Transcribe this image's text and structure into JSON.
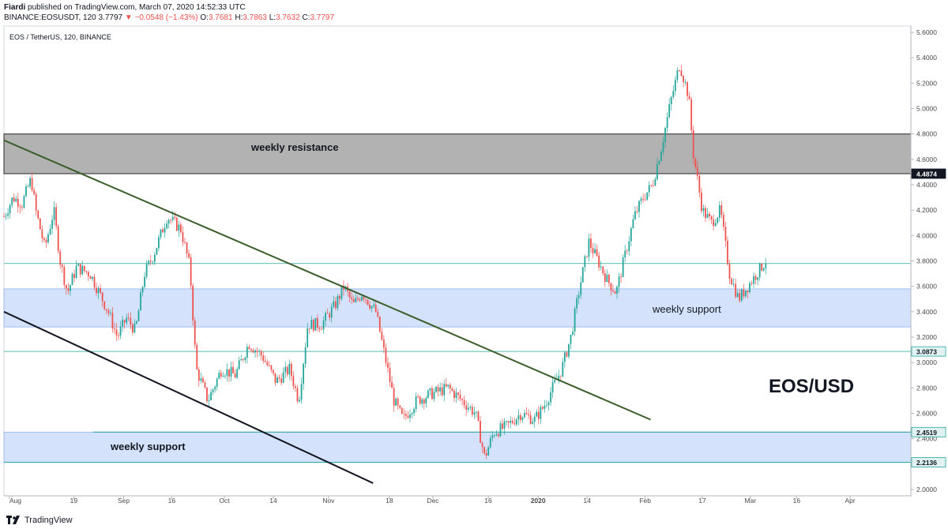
{
  "header": {
    "author": "Fiardi",
    "published_text": "published on TradingView.com, March 07, 2020 14:52:33 UTC",
    "symbol": "BINANCE:EOSUSDT, 120",
    "last": "3.7797",
    "change": "−0.0548 (−1.43%)",
    "o_label": "O:",
    "o_value": "3.7681",
    "h_label": "H:",
    "h_value": "3.7863",
    "l_label": "L:",
    "l_value": "3.7632",
    "c_label": "C:",
    "c_value": "3.7797"
  },
  "footer": {
    "brand": "TradingView"
  },
  "colors": {
    "up": "#26a69a",
    "down": "#ef5350",
    "resistance_zone": "#b2b2b2",
    "support_zone": "#d4e3fb",
    "trend_green": "#3b5e2b",
    "trend_black": "#131722",
    "hline": "#26a69a"
  },
  "chart_data": {
    "type": "candlestick",
    "legend": "EOS / TetherUS, 120, BINANCE",
    "y_ticks": [
      "5.6000",
      "5.4000",
      "5.2000",
      "5.0000",
      "4.8000",
      "4.6000",
      "4.4000",
      "4.2000",
      "4.0000",
      "3.8000",
      "3.6000",
      "3.4000",
      "3.2000",
      "3.0000",
      "2.8000",
      "2.6000",
      "2.4000",
      "2.2000",
      "2.0000"
    ],
    "y_range": [
      1.95,
      5.65
    ],
    "highlighted_price_labels": [
      "4.4874",
      "3.0873",
      "2.4519",
      "2.2136"
    ],
    "x_ticks": [
      "Aug",
      "19",
      "Sep",
      "16",
      "Oct",
      "14",
      "Nov",
      "18",
      "Dec",
      "16",
      "2020",
      "14",
      "Feb",
      "17",
      "Mar",
      "16",
      "Apr"
    ],
    "zones": [
      {
        "label": "weekly resistance",
        "from": 4.4874,
        "to": 4.8
      },
      {
        "label": "weekly support",
        "from": 3.28,
        "to": 3.58
      },
      {
        "label": "weekly support",
        "from": 2.2136,
        "to": 2.4519
      }
    ],
    "horizontal_lines": [
      3.78,
      3.0873
    ],
    "trendlines": [
      {
        "name": "descending resistance",
        "points": [
          [
            0,
            4.75
          ],
          [
            0.713,
            2.55
          ]
        ]
      },
      {
        "name": "lower channel",
        "points": [
          [
            0,
            3.4
          ],
          [
            0.407,
            2.05
          ]
        ]
      }
    ],
    "annotation": "EOS/USD",
    "price_path": [
      [
        0.0,
        4.15
      ],
      [
        0.01,
        4.3
      ],
      [
        0.02,
        4.25
      ],
      [
        0.03,
        4.45
      ],
      [
        0.035,
        4.2
      ],
      [
        0.045,
        3.9
      ],
      [
        0.055,
        4.2
      ],
      [
        0.062,
        3.8
      ],
      [
        0.07,
        3.55
      ],
      [
        0.08,
        3.75
      ],
      [
        0.095,
        3.7
      ],
      [
        0.105,
        3.55
      ],
      [
        0.115,
        3.4
      ],
      [
        0.125,
        3.2
      ],
      [
        0.135,
        3.35
      ],
      [
        0.145,
        3.25
      ],
      [
        0.155,
        3.7
      ],
      [
        0.165,
        3.85
      ],
      [
        0.18,
        4.15
      ],
      [
        0.195,
        4.05
      ],
      [
        0.205,
        3.75
      ],
      [
        0.212,
        2.95
      ],
      [
        0.225,
        2.7
      ],
      [
        0.24,
        2.95
      ],
      [
        0.255,
        2.9
      ],
      [
        0.27,
        3.15
      ],
      [
        0.285,
        3.05
      ],
      [
        0.3,
        2.85
      ],
      [
        0.315,
        2.95
      ],
      [
        0.325,
        2.7
      ],
      [
        0.335,
        3.3
      ],
      [
        0.35,
        3.3
      ],
      [
        0.365,
        3.45
      ],
      [
        0.375,
        3.6
      ],
      [
        0.385,
        3.45
      ],
      [
        0.395,
        3.55
      ],
      [
        0.41,
        3.4
      ],
      [
        0.42,
        3.05
      ],
      [
        0.43,
        2.7
      ],
      [
        0.44,
        2.55
      ],
      [
        0.455,
        2.7
      ],
      [
        0.47,
        2.75
      ],
      [
        0.49,
        2.8
      ],
      [
        0.505,
        2.7
      ],
      [
        0.52,
        2.6
      ],
      [
        0.53,
        2.25
      ],
      [
        0.54,
        2.45
      ],
      [
        0.555,
        2.5
      ],
      [
        0.57,
        2.6
      ],
      [
        0.585,
        2.55
      ],
      [
        0.595,
        2.65
      ],
      [
        0.605,
        2.8
      ],
      [
        0.615,
        2.95
      ],
      [
        0.625,
        3.2
      ],
      [
        0.635,
        3.6
      ],
      [
        0.645,
        3.95
      ],
      [
        0.655,
        3.8
      ],
      [
        0.665,
        3.65
      ],
      [
        0.675,
        3.55
      ],
      [
        0.685,
        3.85
      ],
      [
        0.695,
        4.15
      ],
      [
        0.705,
        4.3
      ],
      [
        0.715,
        4.4
      ],
      [
        0.725,
        4.7
      ],
      [
        0.735,
        5.05
      ],
      [
        0.745,
        5.35
      ],
      [
        0.755,
        5.1
      ],
      [
        0.76,
        4.65
      ],
      [
        0.77,
        4.2
      ],
      [
        0.78,
        4.1
      ],
      [
        0.79,
        4.2
      ],
      [
        0.8,
        3.7
      ],
      [
        0.81,
        3.5
      ],
      [
        0.82,
        3.6
      ],
      [
        0.83,
        3.7
      ],
      [
        0.84,
        3.8
      ]
    ]
  }
}
